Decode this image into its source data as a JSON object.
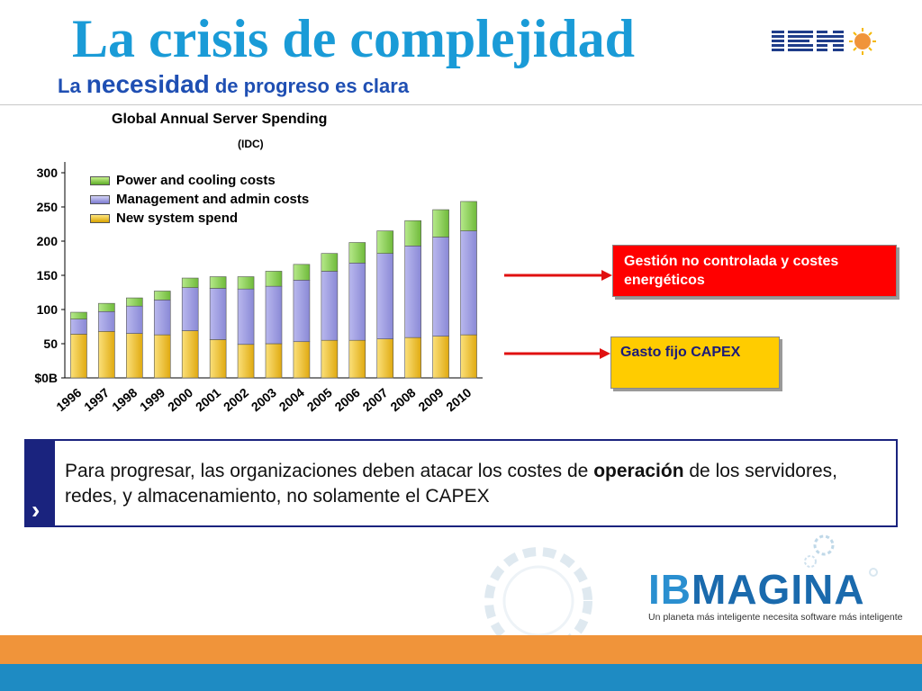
{
  "header": {
    "title": "La crisis de complejidad",
    "subtitle_part1": "La ",
    "subtitle_part2": "necesidad",
    "subtitle_part3": " de progreso es clara",
    "title_color": "#1a9bd7",
    "subtitle_color": "#1f4fb3"
  },
  "logo": {
    "name": "IBM",
    "icon": "ibm-logo"
  },
  "chart_data": {
    "type": "bar",
    "stacked": true,
    "title": "Global Annual Server Spending",
    "subtitle": "(IDC)",
    "categories": [
      "1996",
      "1997",
      "1998",
      "1999",
      "2000",
      "2001",
      "2002",
      "2003",
      "2004",
      "2005",
      "2006",
      "2007",
      "2008",
      "2009",
      "2010"
    ],
    "series": [
      {
        "name": "New system spend",
        "color": "#f2c21b",
        "values": [
          64,
          68,
          65,
          63,
          69,
          56,
          49,
          50,
          53,
          55,
          55,
          57,
          59,
          61,
          63
        ]
      },
      {
        "name": "Management and admin costs",
        "color": "#9d9ce0",
        "values": [
          22,
          29,
          40,
          51,
          63,
          75,
          81,
          84,
          90,
          101,
          113,
          125,
          134,
          145,
          152
        ]
      },
      {
        "name": "Power and cooling costs",
        "color": "#8fd05a",
        "values": [
          10,
          12,
          12,
          13,
          14,
          17,
          18,
          22,
          23,
          26,
          30,
          33,
          37,
          40,
          43
        ]
      }
    ],
    "y_ticks": [
      "$0B",
      "50",
      "100",
      "150",
      "200",
      "250",
      "300"
    ],
    "y_tick_values": [
      0,
      50,
      100,
      150,
      200,
      250,
      300
    ],
    "ylim": [
      0,
      320
    ],
    "legend_position": "top-left",
    "grid": false
  },
  "callouts": {
    "red": {
      "text": "Gestión no controlada y costes energéticos",
      "color": "#ff0000"
    },
    "yellow": {
      "text": "Gasto fijo CAPEX",
      "color": "#ffcc00"
    }
  },
  "note": {
    "text_before": "Para progresar, las organizaciones deben atacar los costes de ",
    "text_bold": "operación",
    "text_after": " de los servidores, redes, y almacenamiento, no solamente el CAPEX",
    "chevron": "›"
  },
  "brand": {
    "word_ib": "IB",
    "word_rest": "MAGINA",
    "tagline": "Un planeta más inteligente necesita software más inteligente"
  },
  "colors": {
    "orange_band": "#f0943a",
    "blue_band": "#1e8bc3",
    "arrow": "#e01010",
    "note_bar": "#1a237e"
  }
}
